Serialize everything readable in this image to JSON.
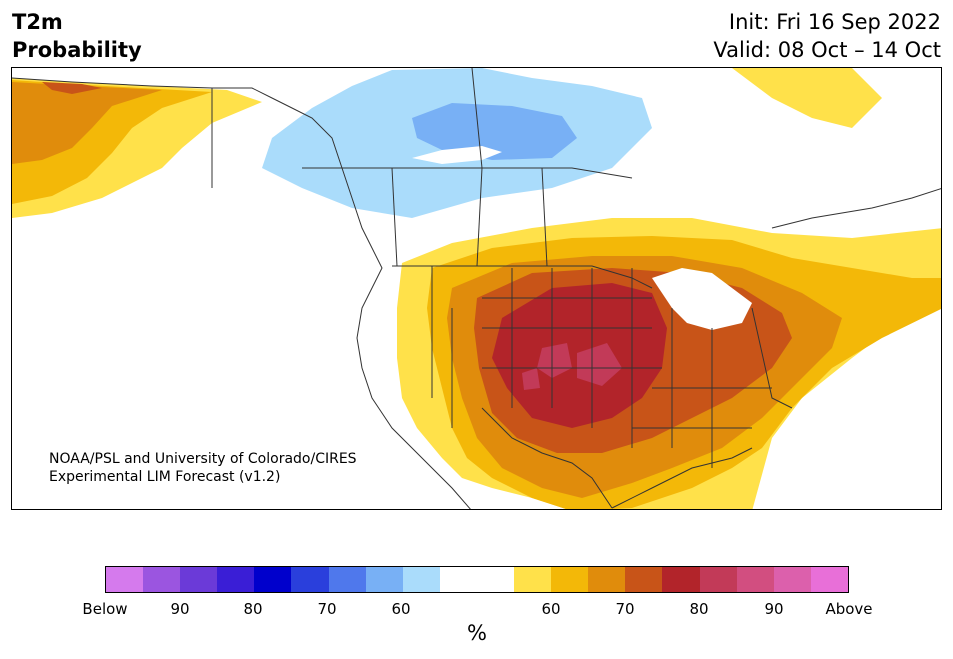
{
  "header": {
    "variable": "T2m",
    "metric": "Probability",
    "init": "Init: Fri 16 Sep 2022",
    "valid": "Valid: 08 Oct – 14 Oct"
  },
  "credit": {
    "line1": "NOAA/PSL and University of Colorado/CIRES",
    "line2": "Experimental LIM Forecast (v1.2)"
  },
  "colorbar": {
    "colors": [
      "#d57aed",
      "#9b55e0",
      "#6b3ad8",
      "#3a1ed6",
      "#0000cc",
      "#2a3fdc",
      "#4f78ec",
      "#78b0f5",
      "#aadcfb",
      "#ffffff",
      "#ffffff",
      "#ffe14a",
      "#f3b808",
      "#e08c0c",
      "#c85418",
      "#b2242a",
      "#c23a58",
      "#d24e80",
      "#dc60ac",
      "#e86fd8"
    ],
    "tick_labels": [
      "Below",
      "90",
      "80",
      "70",
      "60",
      "60",
      "70",
      "80",
      "90",
      "Above"
    ],
    "unit": "%"
  },
  "legend_colors": {
    "below_60_70": "#aadcfb",
    "below_70_80": "#78b0f5",
    "above_60_70": "#ffe14a",
    "above_70": "#f3b808",
    "above_80": "#e08c0c",
    "above_85": "#c85418",
    "above_90": "#b2242a",
    "above_95": "#c23a58"
  }
}
